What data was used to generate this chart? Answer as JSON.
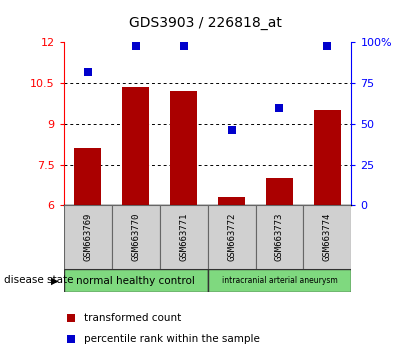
{
  "title": "GDS3903 / 226818_at",
  "samples": [
    "GSM663769",
    "GSM663770",
    "GSM663771",
    "GSM663772",
    "GSM663773",
    "GSM663774"
  ],
  "transformed_count": [
    8.1,
    10.35,
    10.2,
    6.3,
    7.0,
    9.5
  ],
  "percentile_rank": [
    82,
    98,
    98,
    46,
    60,
    98
  ],
  "ylim_left": [
    6,
    12
  ],
  "ylim_right": [
    0,
    100
  ],
  "yticks_left": [
    6,
    7.5,
    9,
    10.5,
    12
  ],
  "yticks_right": [
    0,
    25,
    50,
    75,
    100
  ],
  "bar_color": "#aa0000",
  "scatter_color": "#0000cc",
  "group1_label": "normal healthy control",
  "group2_label": "intracranial arterial aneurysm",
  "group_color": "#7FD97F",
  "group_box_color": "#d0d0d0",
  "legend_bar_label": "transformed count",
  "legend_scatter_label": "percentile rank within the sample",
  "disease_state_label": "disease state"
}
